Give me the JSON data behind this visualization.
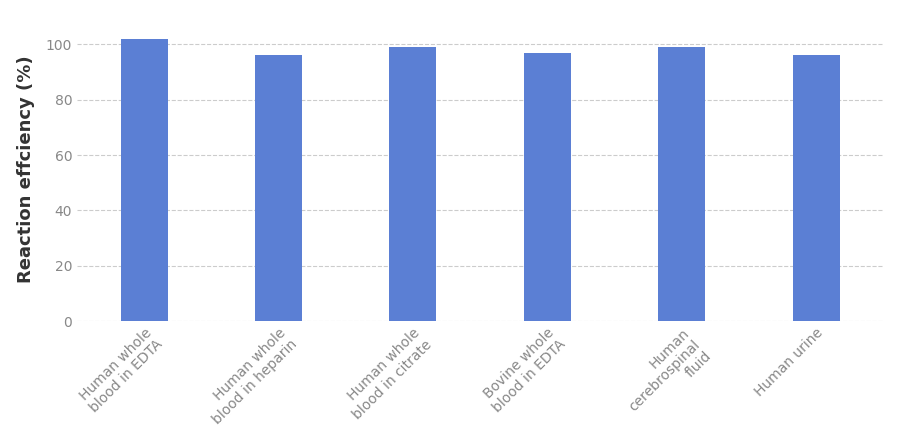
{
  "categories": [
    "Human whole\nblood in EDTA",
    "Human whole\nblood in heparin",
    "Human whole\nblood in citrate",
    "Bovine whole\nblood in EDTA",
    "Human\ncerebrospinal\nfluid",
    "Human urine"
  ],
  "values": [
    102,
    96,
    99,
    97,
    99,
    96
  ],
  "bar_color": "#5B7FD4",
  "ylabel": "Reaction effciency (%)",
  "ylim": [
    0,
    110
  ],
  "yticks": [
    0,
    20,
    40,
    60,
    80,
    100
  ],
  "bar_width": 0.35,
  "background_color": "#ffffff",
  "grid_color": "#cccccc",
  "ylabel_fontsize": 13,
  "tick_fontsize": 10,
  "label_color": "#888888"
}
